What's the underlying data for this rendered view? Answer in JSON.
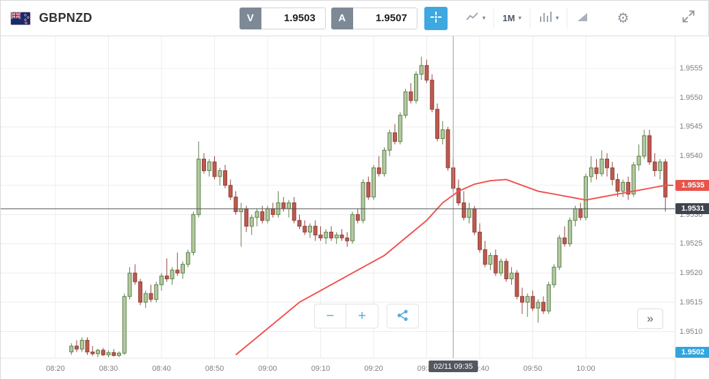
{
  "toolbar": {
    "symbol": "GBPNZD",
    "sell_button": {
      "label": "V",
      "value": "1.9503"
    },
    "buy_button": {
      "label": "A",
      "value": "1.9507"
    },
    "timeframe": "1M"
  },
  "icons": {
    "caret": "▾",
    "gear": "⚙"
  },
  "controls": {
    "zoom_out": "−",
    "zoom_in": "+",
    "jump_latest": "»"
  },
  "crosshair": {
    "time_min": 75,
    "time_label": "02/11 09:35",
    "price": 1.9531
  },
  "price_badges": [
    {
      "name": "ma-value-badge",
      "label": "1.9535",
      "value": 1.9535,
      "color": "#e8544b"
    },
    {
      "name": "crosshair-price-badge",
      "label": "1.9531",
      "value": 1.9531,
      "color": "#3f454e"
    },
    {
      "name": "current-rate-badge",
      "label": "1.9502",
      "value": 1.9502,
      "color": "#33a4dc"
    }
  ],
  "chart_data": {
    "type": "candlestick",
    "symbol": "GBPNZD",
    "interval": "1M",
    "t_unit": "minutes after 08:20",
    "ylim": [
      1.95055,
      1.95605
    ],
    "grid": true,
    "x_ticks": [
      {
        "t": 0,
        "label": "08:20"
      },
      {
        "t": 10,
        "label": "08:30"
      },
      {
        "t": 20,
        "label": "08:40"
      },
      {
        "t": 30,
        "label": "08:50"
      },
      {
        "t": 40,
        "label": "09:00"
      },
      {
        "t": 50,
        "label": "09:10"
      },
      {
        "t": 60,
        "label": "09:20"
      },
      {
        "t": 70,
        "label": "09:30"
      },
      {
        "t": 80,
        "label": "09:40"
      },
      {
        "t": 90,
        "label": "09:50"
      },
      {
        "t": 100,
        "label": "10:00"
      }
    ],
    "y_ticks": [
      {
        "p": 1.9555,
        "label": "1.9555"
      },
      {
        "p": 1.955,
        "label": "1.9550"
      },
      {
        "p": 1.9545,
        "label": "1.9545"
      },
      {
        "p": 1.954,
        "label": "1.9540"
      },
      {
        "p": 1.9535,
        "label": "1.9535"
      },
      {
        "p": 1.953,
        "label": "1.9530"
      },
      {
        "p": 1.9525,
        "label": "1.9525"
      },
      {
        "p": 1.952,
        "label": "1.9520"
      },
      {
        "p": 1.9515,
        "label": "1.9515"
      },
      {
        "p": 1.951,
        "label": "1.9510"
      }
    ],
    "colors": {
      "grid": "#ececec",
      "up_fill": "#b3c9a2",
      "up_border": "#5a7f46",
      "down_fill": "#bd5a50",
      "down_border": "#8e4038",
      "ma": "#ef5350",
      "crosshair_v": "#9b9b9b",
      "crosshair_h": "#4a4a4a"
    },
    "overlay": {
      "name": "moving-average",
      "color": "#ef5350",
      "points": [
        [
          34,
          1.9506
        ],
        [
          38,
          1.9509
        ],
        [
          42,
          1.9512
        ],
        [
          46,
          1.9515
        ],
        [
          50,
          1.9517
        ],
        [
          54,
          1.9519
        ],
        [
          58,
          1.9521
        ],
        [
          62,
          1.9523
        ],
        [
          66,
          1.9526
        ],
        [
          70,
          1.9529
        ],
        [
          73,
          1.9532
        ],
        [
          76,
          1.9534
        ],
        [
          79,
          1.95352
        ],
        [
          82,
          1.95358
        ],
        [
          85,
          1.9536
        ],
        [
          88,
          1.9535
        ],
        [
          91,
          1.9534
        ],
        [
          94,
          1.95335
        ],
        [
          97,
          1.9533
        ],
        [
          100,
          1.95325
        ],
        [
          103,
          1.9533
        ],
        [
          106,
          1.95335
        ],
        [
          109,
          1.9534
        ],
        [
          112,
          1.95345
        ],
        [
          115,
          1.9535
        ],
        [
          116.5,
          1.9535
        ]
      ]
    },
    "candles": [
      [
        3,
        1.95065,
        1.9508,
        1.9506,
        1.95075
      ],
      [
        4,
        1.95075,
        1.95085,
        1.95065,
        1.9507
      ],
      [
        5,
        1.9507,
        1.9509,
        1.95065,
        1.95085
      ],
      [
        6,
        1.95085,
        1.9509,
        1.9506,
        1.95065
      ],
      [
        7,
        1.95065,
        1.95075,
        1.95058,
        1.95062
      ],
      [
        8,
        1.95062,
        1.9507,
        1.95056,
        1.95068
      ],
      [
        9,
        1.95068,
        1.95072,
        1.95058,
        1.9506
      ],
      [
        10,
        1.9506,
        1.95068,
        1.95056,
        1.95064
      ],
      [
        11,
        1.95064,
        1.9507,
        1.95057,
        1.95059
      ],
      [
        12,
        1.95059,
        1.95066,
        1.95056,
        1.95063
      ],
      [
        13,
        1.95063,
        1.95165,
        1.9506,
        1.9516
      ],
      [
        14,
        1.9516,
        1.9521,
        1.95155,
        1.952
      ],
      [
        15,
        1.952,
        1.95215,
        1.9518,
        1.95185
      ],
      [
        16,
        1.95185,
        1.9519,
        1.95145,
        1.9515
      ],
      [
        17,
        1.9515,
        1.9517,
        1.9514,
        1.95165
      ],
      [
        18,
        1.95165,
        1.9518,
        1.9515,
        1.95155
      ],
      [
        19,
        1.95155,
        1.95185,
        1.9515,
        1.9518
      ],
      [
        20,
        1.9518,
        1.952,
        1.9517,
        1.95195
      ],
      [
        21,
        1.95195,
        1.95225,
        1.95185,
        1.9519
      ],
      [
        22,
        1.9519,
        1.9521,
        1.9518,
        1.95205
      ],
      [
        23,
        1.95205,
        1.95235,
        1.95195,
        1.952
      ],
      [
        24,
        1.952,
        1.9522,
        1.9519,
        1.95215
      ],
      [
        25,
        1.95215,
        1.9524,
        1.9521,
        1.95235
      ],
      [
        26,
        1.95235,
        1.95305,
        1.9523,
        1.953
      ],
      [
        27,
        1.953,
        1.95425,
        1.95295,
        1.95395
      ],
      [
        28,
        1.95395,
        1.95405,
        1.9537,
        1.95375
      ],
      [
        29,
        1.95375,
        1.95395,
        1.95365,
        1.9539
      ],
      [
        30,
        1.9539,
        1.954,
        1.9536,
        1.95365
      ],
      [
        31,
        1.95365,
        1.9538,
        1.9535,
        1.95375
      ],
      [
        32,
        1.95375,
        1.95385,
        1.95345,
        1.9535
      ],
      [
        33,
        1.9535,
        1.9536,
        1.95325,
        1.9533
      ],
      [
        34,
        1.9533,
        1.9534,
        1.953,
        1.95305
      ],
      [
        35,
        1.95305,
        1.9532,
        1.95245,
        1.9531
      ],
      [
        36,
        1.9531,
        1.95315,
        1.9527,
        1.9528
      ],
      [
        37,
        1.9528,
        1.953,
        1.95265,
        1.95295
      ],
      [
        38,
        1.95295,
        1.9531,
        1.9528,
        1.95305
      ],
      [
        39,
        1.95305,
        1.95315,
        1.95285,
        1.9529
      ],
      [
        40,
        1.9529,
        1.95315,
        1.95285,
        1.9531
      ],
      [
        41,
        1.9531,
        1.9532,
        1.95295,
        1.953
      ],
      [
        42,
        1.953,
        1.9534,
        1.95295,
        1.9532
      ],
      [
        43,
        1.9532,
        1.9533,
        1.95305,
        1.9531
      ],
      [
        44,
        1.9531,
        1.95325,
        1.95295,
        1.9532
      ],
      [
        45,
        1.9532,
        1.9533,
        1.95285,
        1.9529
      ],
      [
        46,
        1.9529,
        1.953,
        1.95275,
        1.9528
      ],
      [
        47,
        1.9528,
        1.9529,
        1.95265,
        1.9527
      ],
      [
        48,
        1.9527,
        1.95285,
        1.9526,
        1.9528
      ],
      [
        49,
        1.9528,
        1.9529,
        1.95255,
        1.95265
      ],
      [
        50,
        1.95265,
        1.9528,
        1.95255,
        1.9526
      ],
      [
        51,
        1.9526,
        1.95275,
        1.9525,
        1.9527
      ],
      [
        52,
        1.9527,
        1.9528,
        1.95255,
        1.9526
      ],
      [
        53,
        1.9526,
        1.9527,
        1.9525,
        1.95265
      ],
      [
        54,
        1.95265,
        1.95275,
        1.95255,
        1.9526
      ],
      [
        55,
        1.9526,
        1.9527,
        1.95245,
        1.95255
      ],
      [
        56,
        1.95255,
        1.95305,
        1.9525,
        1.953
      ],
      [
        57,
        1.953,
        1.9531,
        1.95285,
        1.9529
      ],
      [
        58,
        1.9529,
        1.9536,
        1.95285,
        1.95355
      ],
      [
        59,
        1.95355,
        1.95365,
        1.95325,
        1.9533
      ],
      [
        60,
        1.9533,
        1.95385,
        1.95325,
        1.9538
      ],
      [
        61,
        1.9538,
        1.954,
        1.95365,
        1.9537
      ],
      [
        62,
        1.9537,
        1.95415,
        1.95365,
        1.9541
      ],
      [
        63,
        1.9541,
        1.95445,
        1.954,
        1.9544
      ],
      [
        64,
        1.9544,
        1.95455,
        1.9542,
        1.95425
      ],
      [
        65,
        1.95425,
        1.95475,
        1.9542,
        1.9547
      ],
      [
        66,
        1.9547,
        1.95515,
        1.95465,
        1.9551
      ],
      [
        67,
        1.9551,
        1.95525,
        1.9549,
        1.95495
      ],
      [
        68,
        1.95495,
        1.95545,
        1.9549,
        1.9554
      ],
      [
        69,
        1.9554,
        1.9557,
        1.9553,
        1.95555
      ],
      [
        70,
        1.95555,
        1.95565,
        1.95525,
        1.9553
      ],
      [
        71,
        1.9553,
        1.9554,
        1.95475,
        1.9548
      ],
      [
        72,
        1.9548,
        1.9549,
        1.95425,
        1.9543
      ],
      [
        73,
        1.9543,
        1.9546,
        1.9542,
        1.95445
      ],
      [
        74,
        1.95445,
        1.9545,
        1.95375,
        1.9538
      ],
      [
        75,
        1.9538,
        1.95395,
        1.9534,
        1.95345
      ],
      [
        76,
        1.95345,
        1.9536,
        1.95315,
        1.9532
      ],
      [
        77,
        1.9532,
        1.9534,
        1.9529,
        1.95295
      ],
      [
        78,
        1.95295,
        1.9532,
        1.95285,
        1.9531
      ],
      [
        79,
        1.9531,
        1.95315,
        1.95265,
        1.9527
      ],
      [
        80,
        1.9527,
        1.95285,
        1.95235,
        1.9524
      ],
      [
        81,
        1.9524,
        1.95255,
        1.9521,
        1.95215
      ],
      [
        82,
        1.95215,
        1.95235,
        1.95205,
        1.9523
      ],
      [
        83,
        1.9523,
        1.9524,
        1.95195,
        1.952
      ],
      [
        84,
        1.952,
        1.95225,
        1.95195,
        1.9522
      ],
      [
        85,
        1.9522,
        1.95225,
        1.95185,
        1.9519
      ],
      [
        86,
        1.9519,
        1.9521,
        1.9518,
        1.952
      ],
      [
        87,
        1.952,
        1.95205,
        1.95155,
        1.9516
      ],
      [
        88,
        1.9516,
        1.95175,
        1.9513,
        1.9515
      ],
      [
        89,
        1.9515,
        1.95165,
        1.95125,
        1.9516
      ],
      [
        90,
        1.9516,
        1.9517,
        1.95135,
        1.9514
      ],
      [
        91,
        1.9514,
        1.95155,
        1.95115,
        1.9515
      ],
      [
        92,
        1.9515,
        1.9516,
        1.9513,
        1.95135
      ],
      [
        93,
        1.95135,
        1.95185,
        1.9513,
        1.9518
      ],
      [
        94,
        1.9518,
        1.95215,
        1.95175,
        1.9521
      ],
      [
        95,
        1.9521,
        1.95265,
        1.95205,
        1.9526
      ],
      [
        96,
        1.9526,
        1.9528,
        1.95245,
        1.9525
      ],
      [
        97,
        1.9525,
        1.95295,
        1.95245,
        1.9529
      ],
      [
        98,
        1.9529,
        1.95315,
        1.9528,
        1.9531
      ],
      [
        99,
        1.9531,
        1.9532,
        1.9529,
        1.95295
      ],
      [
        100,
        1.95295,
        1.9537,
        1.9529,
        1.95365
      ],
      [
        101,
        1.95365,
        1.954,
        1.95355,
        1.9538
      ],
      [
        102,
        1.9538,
        1.95395,
        1.9536,
        1.9537
      ],
      [
        103,
        1.9537,
        1.9541,
        1.95365,
        1.95395
      ],
      [
        104,
        1.95395,
        1.95405,
        1.95365,
        1.9538
      ],
      [
        105,
        1.9538,
        1.9539,
        1.9535,
        1.9536
      ],
      [
        106,
        1.9536,
        1.9537,
        1.9533,
        1.9534
      ],
      [
        107,
        1.9534,
        1.9536,
        1.9533,
        1.95355
      ],
      [
        108,
        1.95355,
        1.95365,
        1.95325,
        1.95335
      ],
      [
        109,
        1.95335,
        1.9539,
        1.9533,
        1.95385
      ],
      [
        110,
        1.95385,
        1.9542,
        1.95375,
        1.954
      ],
      [
        111,
        1.954,
        1.95445,
        1.95395,
        1.95435
      ],
      [
        112,
        1.95435,
        1.95445,
        1.95385,
        1.9539
      ],
      [
        113,
        1.9539,
        1.95405,
        1.95365,
        1.95375
      ],
      [
        114,
        1.95375,
        1.95395,
        1.9536,
        1.9539
      ],
      [
        115,
        1.9539,
        1.95395,
        1.95305,
        1.9533
      ]
    ]
  }
}
